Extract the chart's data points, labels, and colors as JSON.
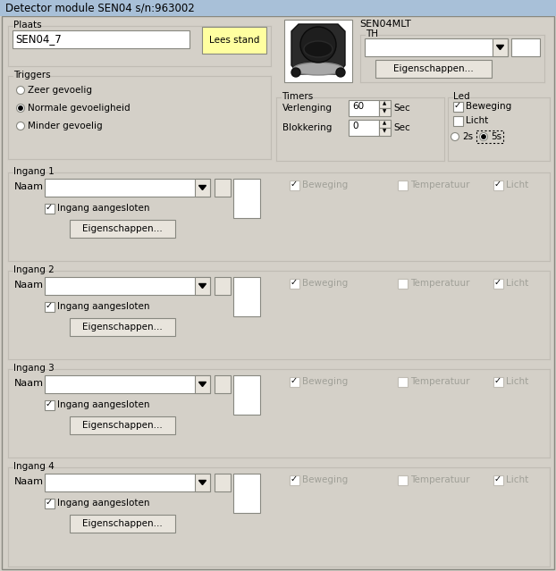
{
  "title": "Detector module SEN04 s/n:963002",
  "bg_color": "#d4d0c8",
  "title_bg": "#a8c0d8",
  "white": "#ffffff",
  "light_gray": "#e8e4dc",
  "mid_gray": "#c0bcb4",
  "dark_gray": "#888880",
  "border_color": "#888880",
  "lees_stand_bg": "#ffffa0",
  "plaats_label": "Plaats",
  "plaats_value": "SEN04_7",
  "lees_stand": "Lees stand",
  "sen04mlt_label": "SEN04MLT",
  "th_label": "TH",
  "eigenschappen": "Eigenschappen...",
  "triggers_label": "Triggers",
  "trigger_options": [
    "Zeer gevoelig",
    "Normale gevoeligheid",
    "Minder gevoelig"
  ],
  "trigger_selected": 1,
  "timers_label": "Timers",
  "verlenging_label": "Verlenging",
  "verlenging_value": "60",
  "blokkering_label": "Blokkering",
  "blokkering_value": "0",
  "sec_label": "Sec",
  "led_label": "Led",
  "led_beweging_checked": true,
  "led_licht_checked": false,
  "led_beweging_label": "Beweging",
  "led_licht_label": "Licht",
  "radio_2s": "2s",
  "radio_5s": "5s",
  "radio_5s_selected": true,
  "ingang_sections": [
    {
      "label": "Ingang 1"
    },
    {
      "label": "Ingang 2"
    },
    {
      "label": "Ingang 3"
    },
    {
      "label": "Ingang 4"
    }
  ],
  "naam_label": "Naam",
  "ingang_aangesloten": "Ingang aangesloten",
  "beweging_label": "Beweging",
  "temperatuur_label": "Temperatuur",
  "licht_label": "Licht",
  "text_gray": "#a0a098"
}
